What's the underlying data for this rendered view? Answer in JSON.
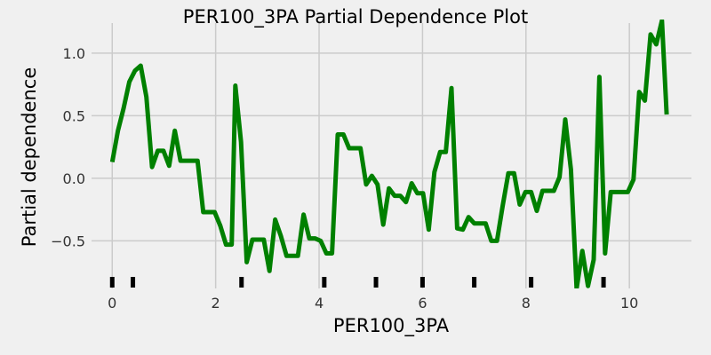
{
  "chart_data": {
    "type": "line",
    "title": "PER100_3PA Partial Dependence Plot",
    "xlabel": "PER100_3PA",
    "ylabel": "Partial dependence",
    "xlim": [
      -0.4,
      11.2
    ],
    "ylim": [
      -0.88,
      1.24
    ],
    "xticks": [
      0,
      2,
      4,
      6,
      8,
      10
    ],
    "yticks": [
      -0.5,
      0.0,
      0.5,
      1.0
    ],
    "xtick_labels": [
      "0",
      "2",
      "4",
      "6",
      "8",
      "10"
    ],
    "ytick_labels": [
      "−0.5",
      "0.0",
      "0.5",
      "1.0"
    ],
    "grid": true,
    "color": "#008000",
    "series": [
      {
        "x": [
          0.0,
          0.11,
          0.22,
          0.33,
          0.44,
          0.55,
          0.66,
          0.77,
          0.88,
          0.99,
          1.1,
          1.21,
          1.32,
          1.43,
          1.54,
          1.65,
          1.76,
          1.87,
          1.98,
          2.09,
          2.2,
          2.31,
          2.38,
          2.49,
          2.6,
          2.71,
          2.82,
          2.93,
          3.04,
          3.15,
          3.26,
          3.37,
          3.48,
          3.59,
          3.7,
          3.81,
          3.92,
          4.03,
          4.14,
          4.25,
          4.36,
          4.47,
          4.58,
          4.69,
          4.8,
          4.91,
          5.02,
          5.13,
          5.24,
          5.35,
          5.46,
          5.57,
          5.68,
          5.79,
          5.9,
          6.01,
          6.12,
          6.23,
          6.34,
          6.45,
          6.56,
          6.67,
          6.78,
          6.89,
          7.0,
          7.11,
          7.22,
          7.33,
          7.44,
          7.55,
          7.66,
          7.77,
          7.88,
          7.99,
          8.1,
          8.21,
          8.32,
          8.43,
          8.54,
          8.65,
          8.76,
          8.87,
          8.98,
          9.09,
          9.2,
          9.31,
          9.42,
          9.53,
          9.64,
          9.75,
          9.86,
          9.97,
          10.08,
          10.19,
          10.3,
          10.41,
          10.52,
          10.63,
          10.72
        ],
        "y": [
          0.13,
          0.38,
          0.56,
          0.77,
          0.86,
          0.9,
          0.65,
          0.09,
          0.22,
          0.22,
          0.1,
          0.38,
          0.14,
          0.14,
          0.14,
          0.14,
          -0.27,
          -0.27,
          -0.27,
          -0.38,
          -0.53,
          -0.53,
          0.74,
          0.29,
          -0.67,
          -0.49,
          -0.49,
          -0.49,
          -0.74,
          -0.33,
          -0.46,
          -0.62,
          -0.62,
          -0.62,
          -0.29,
          -0.48,
          -0.48,
          -0.5,
          -0.6,
          -0.6,
          0.35,
          0.35,
          0.24,
          0.24,
          0.24,
          -0.05,
          0.02,
          -0.05,
          -0.37,
          -0.08,
          -0.14,
          -0.14,
          -0.19,
          -0.04,
          -0.12,
          -0.12,
          -0.41,
          0.05,
          0.21,
          0.21,
          0.72,
          -0.4,
          -0.41,
          -0.31,
          -0.36,
          -0.36,
          -0.36,
          -0.5,
          -0.5,
          -0.22,
          0.04,
          0.04,
          -0.21,
          -0.11,
          -0.11,
          -0.26,
          -0.1,
          -0.1,
          -0.1,
          0.01,
          0.47,
          0.07,
          -0.88,
          -0.58,
          -0.86,
          -0.65,
          0.81,
          -0.6,
          -0.11,
          -0.11,
          -0.11,
          -0.11,
          -0.01,
          0.69,
          0.62,
          1.15,
          1.07,
          1.26,
          0.51
        ]
      }
    ],
    "rug": [
      0.0,
      0.4,
      2.5,
      4.1,
      5.1,
      6.0,
      7.0,
      8.1,
      9.5
    ]
  }
}
